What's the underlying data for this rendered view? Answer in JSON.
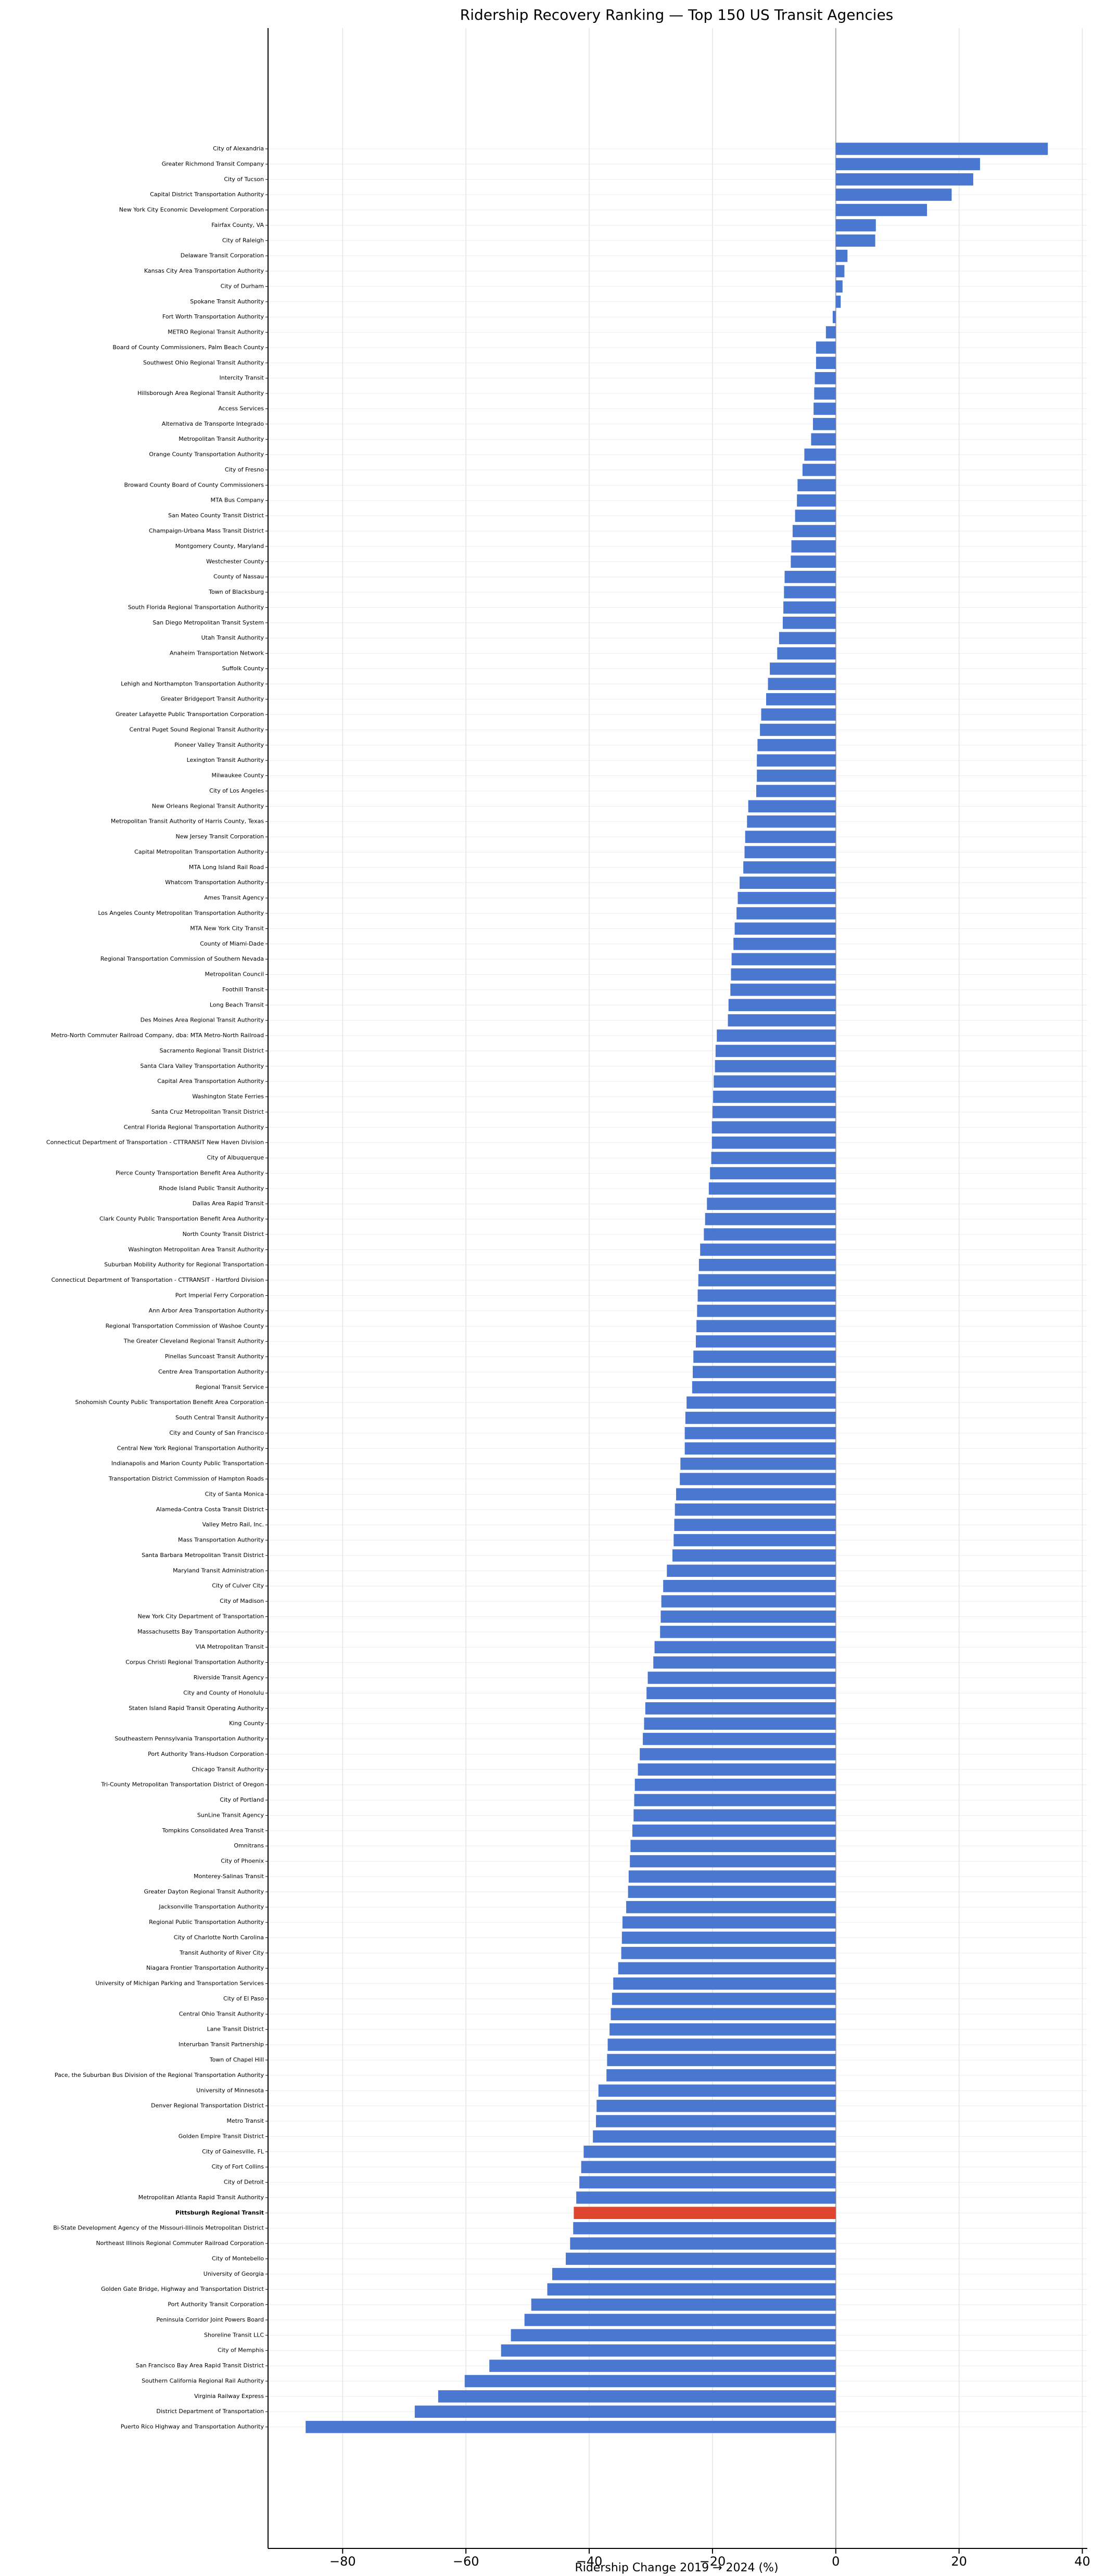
{
  "chart_data": {
    "type": "barh",
    "title": "Ridership Recovery Ranking — Top 150 US Transit Agencies",
    "x_label": "Ridership Change 2019 → 2024 (%)",
    "color": "#4a77cf",
    "categories": [
      "City of Alexandria",
      "Greater Richmond Transit Company",
      "City of Tucson",
      "Capital District Transportation Authority",
      "New York City Economic Development Corporation",
      "Fairfax County, VA",
      "City of Raleigh",
      "Delaware Transit Corporation",
      "Kansas City Area Transportation Authority",
      "City of Durham",
      "Spokane Transit Authority",
      "Fort Worth Transportation Authority",
      "METRO Regional Transit Authority",
      "Board of County Commissioners, Palm Beach County",
      "Southwest Ohio Regional Transit Authority",
      "Intercity Transit",
      "Hillsborough Area Regional Transit Authority",
      "Access Services",
      "Alternativa de Transporte Integrado",
      "Metropolitan Transit Authority",
      "Orange County Transportation Authority",
      "City of Fresno",
      "Broward County Board of County Commissioners",
      "MTA Bus Company",
      "San Mateo County Transit District",
      "Champaign-Urbana Mass Transit District",
      "Montgomery County, Maryland",
      "Westchester County",
      "County of Nassau",
      "Town of Blacksburg",
      "South Florida Regional Transportation Authority",
      "San Diego Metropolitan Transit System",
      "Utah Transit Authority",
      "Anaheim Transportation Network",
      "Suffolk County",
      "Lehigh and Northampton Transportation Authority",
      "Greater Bridgeport Transit Authority",
      "Greater Lafayette Public Transportation Corporation",
      "Central Puget Sound Regional Transit Authority",
      "Pioneer Valley Transit Authority",
      "Lexington Transit Authority",
      "Milwaukee County",
      "City of Los Angeles",
      "New Orleans Regional Transit Authority",
      "Metropolitan Transit Authority of Harris County, Texas",
      "New Jersey Transit Corporation",
      "Capital Metropolitan Transportation Authority",
      "MTA Long Island Rail Road",
      "Whatcom Transportation Authority",
      "Ames Transit Agency",
      "Los Angeles County Metropolitan Transportation Authority",
      "MTA New York City Transit",
      "County of Miami-Dade",
      "Regional Transportation Commission of Southern Nevada",
      "Metropolitan Council",
      "Foothill Transit",
      "Long Beach Transit",
      "Des Moines Area Regional Transit Authority",
      "Metro-North Commuter Railroad Company, dba: MTA Metro-North Railroad",
      "Sacramento Regional Transit District",
      "Santa Clara Valley Transportation Authority",
      "Capital Area Transportation Authority",
      "Washington State Ferries",
      "Santa Cruz Metropolitan Transit District",
      "Central Florida Regional Transportation Authority",
      "Connecticut Department of Transportation - CTTRANSIT New Haven Division",
      "City of Albuquerque",
      "Pierce County Transportation Benefit Area Authority",
      "Rhode Island Public Transit Authority",
      "Dallas Area Rapid Transit",
      "Clark County Public Transportation Benefit Area Authority",
      "North County Transit District",
      "Washington Metropolitan Area Transit Authority",
      "Suburban Mobility Authority for Regional Transportation",
      "Connecticut Department of Transportation - CTTRANSIT - Hartford Division",
      "Port Imperial Ferry Corporation",
      "Ann Arbor Area Transportation Authority",
      "Regional Transportation Commission of Washoe County",
      "The Greater Cleveland Regional Transit Authority",
      "Pinellas Suncoast Transit Authority",
      "Centre Area Transportation Authority",
      "Regional Transit Service",
      "Snohomish County Public Transportation Benefit Area Corporation",
      "South Central Transit Authority",
      "City and County of San Francisco",
      "Central New York Regional Transportation Authority",
      "Indianapolis and Marion County Public Transportation",
      "Transportation District Commission of Hampton Roads",
      "City of Santa Monica",
      "Alameda-Contra Costa Transit District",
      "Valley Metro Rail, Inc.",
      "Mass Transportation Authority",
      "Santa Barbara Metropolitan Transit District",
      "Maryland Transit Administration",
      "City of Culver City",
      "City of Madison",
      "New York City Department of Transportation",
      "Massachusetts Bay Transportation Authority",
      "VIA Metropolitan Transit",
      "Corpus Christi Regional Transportation Authority",
      "Riverside Transit Agency",
      "City and County of Honolulu",
      "Staten Island Rapid Transit Operating Authority",
      "King County",
      "Southeastern Pennsylvania Transportation Authority",
      "Port Authority Trans-Hudson Corporation",
      "Chicago Transit Authority",
      "Tri-County Metropolitan Transportation District of Oregon",
      "City of Portland",
      "SunLine Transit Agency",
      "Tompkins Consolidated Area Transit",
      "Omnitrans",
      "City of Phoenix",
      "Monterey-Salinas Transit",
      "Greater Dayton Regional Transit Authority",
      "Jacksonville Transportation Authority",
      "Regional Public Transportation Authority",
      "City of Charlotte North Carolina",
      "Transit Authority of River City",
      "Niagara Frontier Transportation Authority",
      "University of Michigan Parking and Transportation Services",
      "City of El Paso",
      "Central Ohio Transit Authority",
      "Lane Transit District",
      "Interurban Transit Partnership",
      "Town of Chapel Hill",
      "Pace, the Suburban Bus Division of the Regional Transportation Authority",
      "University of Minnesota",
      "Denver Regional Transportation District",
      "Metro Transit",
      "Golden Empire Transit District",
      "City of Gainesville, FL",
      "City of Fort Collins",
      "City of Detroit",
      "Metropolitan Atlanta Rapid Transit Authority",
      "Pittsburgh Regional Transit",
      "Bi-State Development Agency of the Missouri-Illinois Metropolitan District",
      "Northeast Illinois Regional Commuter Railroad Corporation",
      "City of Montebello",
      "University of Georgia",
      "Golden Gate Bridge, Highway and Transportation District",
      "Port Authority Transit Corporation",
      "Peninsula Corridor Joint Powers Board",
      "Shoreline Transit LLC",
      "City of Memphis",
      "San Francisco Bay Area Rapid Transit District",
      "Southern California Regional Rail Authority",
      "Virginia Railway Express",
      "District Department of Transportation",
      "Puerto Rico Highway and Transportation Authority"
    ],
    "values": [
      34.4,
      23.4,
      22.3,
      18.8,
      14.8,
      6.5,
      6.4,
      1.9,
      1.4,
      1.1,
      0.8,
      -0.5,
      -1.6,
      -3.2,
      -3.2,
      -3.4,
      -3.5,
      -3.6,
      -3.7,
      -4.0,
      -5.1,
      -5.4,
      -6.2,
      -6.3,
      -6.6,
      -7.0,
      -7.2,
      -7.3,
      -8.3,
      -8.4,
      -8.5,
      -8.6,
      -9.2,
      -9.5,
      -10.7,
      -11.0,
      -11.3,
      -12.1,
      -12.3,
      -12.7,
      -12.8,
      -12.8,
      -12.9,
      -14.2,
      -14.4,
      -14.7,
      -14.8,
      -15.0,
      -15.6,
      -15.9,
      -16.1,
      -16.4,
      -16.6,
      -16.9,
      -17.0,
      -17.1,
      -17.4,
      -17.5,
      -19.3,
      -19.5,
      -19.6,
      -19.8,
      -19.9,
      -20.0,
      -20.1,
      -20.1,
      -20.2,
      -20.4,
      -20.6,
      -20.9,
      -21.2,
      -21.4,
      -22.0,
      -22.2,
      -22.3,
      -22.4,
      -22.5,
      -22.6,
      -22.7,
      -23.1,
      -23.2,
      -23.3,
      -24.2,
      -24.4,
      -24.5,
      -24.5,
      -25.2,
      -25.3,
      -25.9,
      -26.1,
      -26.2,
      -26.3,
      -26.5,
      -27.4,
      -28.0,
      -28.3,
      -28.4,
      -28.5,
      -29.4,
      -29.6,
      -30.5,
      -30.7,
      -30.9,
      -31.1,
      -31.3,
      -31.8,
      -32.1,
      -32.6,
      -32.7,
      -32.8,
      -33.0,
      -33.3,
      -33.4,
      -33.6,
      -33.7,
      -34.0,
      -34.6,
      -34.7,
      -34.8,
      -35.3,
      -36.1,
      -36.3,
      -36.5,
      -36.7,
      -37.0,
      -37.1,
      -37.2,
      -38.5,
      -38.8,
      -38.9,
      -39.4,
      -40.9,
      -41.3,
      -41.6,
      -42.1,
      -42.5,
      -42.6,
      -43.1,
      -43.8,
      -46.0,
      -46.8,
      -49.4,
      -50.5,
      -52.7,
      -54.3,
      -56.2,
      -60.2,
      -64.5,
      -68.3,
      -86.0
    ],
    "highlight": {
      "category": 135,
      "color": "#e0452f"
    },
    "xlim": [
      -92.1,
      40.8
    ],
    "xticks": [
      {
        "value": -80,
        "label": "−80"
      },
      {
        "value": -60,
        "label": "−60"
      },
      {
        "value": -40,
        "label": "−40"
      },
      {
        "value": -20,
        "label": "−20"
      },
      0,
      20,
      40
    ],
    "grid": true
  }
}
